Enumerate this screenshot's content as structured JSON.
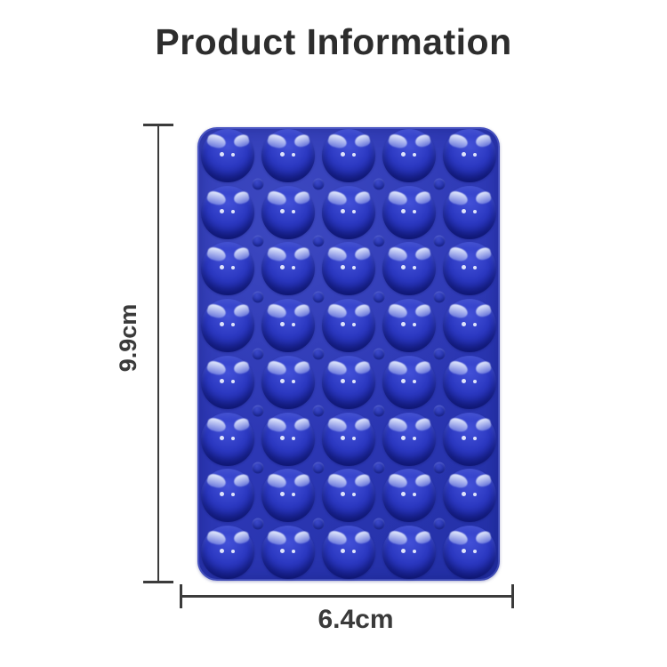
{
  "page": {
    "title": "Product Information",
    "background": "#ffffff",
    "ink": "#2d2d2d"
  },
  "dimensions": {
    "height_label": "9.9cm",
    "width_label": "6.4cm",
    "line_color": "#3b3b3b"
  },
  "product": {
    "name": "blue-silicone-suction-cup-pad",
    "rows": 8,
    "cols": 5,
    "cup_count": 40,
    "colors": {
      "base": "#2c37b4",
      "base_dark": "#2330a6",
      "cup_top": "#4351d8",
      "cup_mid": "#2c39c2",
      "cup_bottom": "#1a249e",
      "highlight": "#dde4fb",
      "dot": "#222fa6"
    }
  }
}
